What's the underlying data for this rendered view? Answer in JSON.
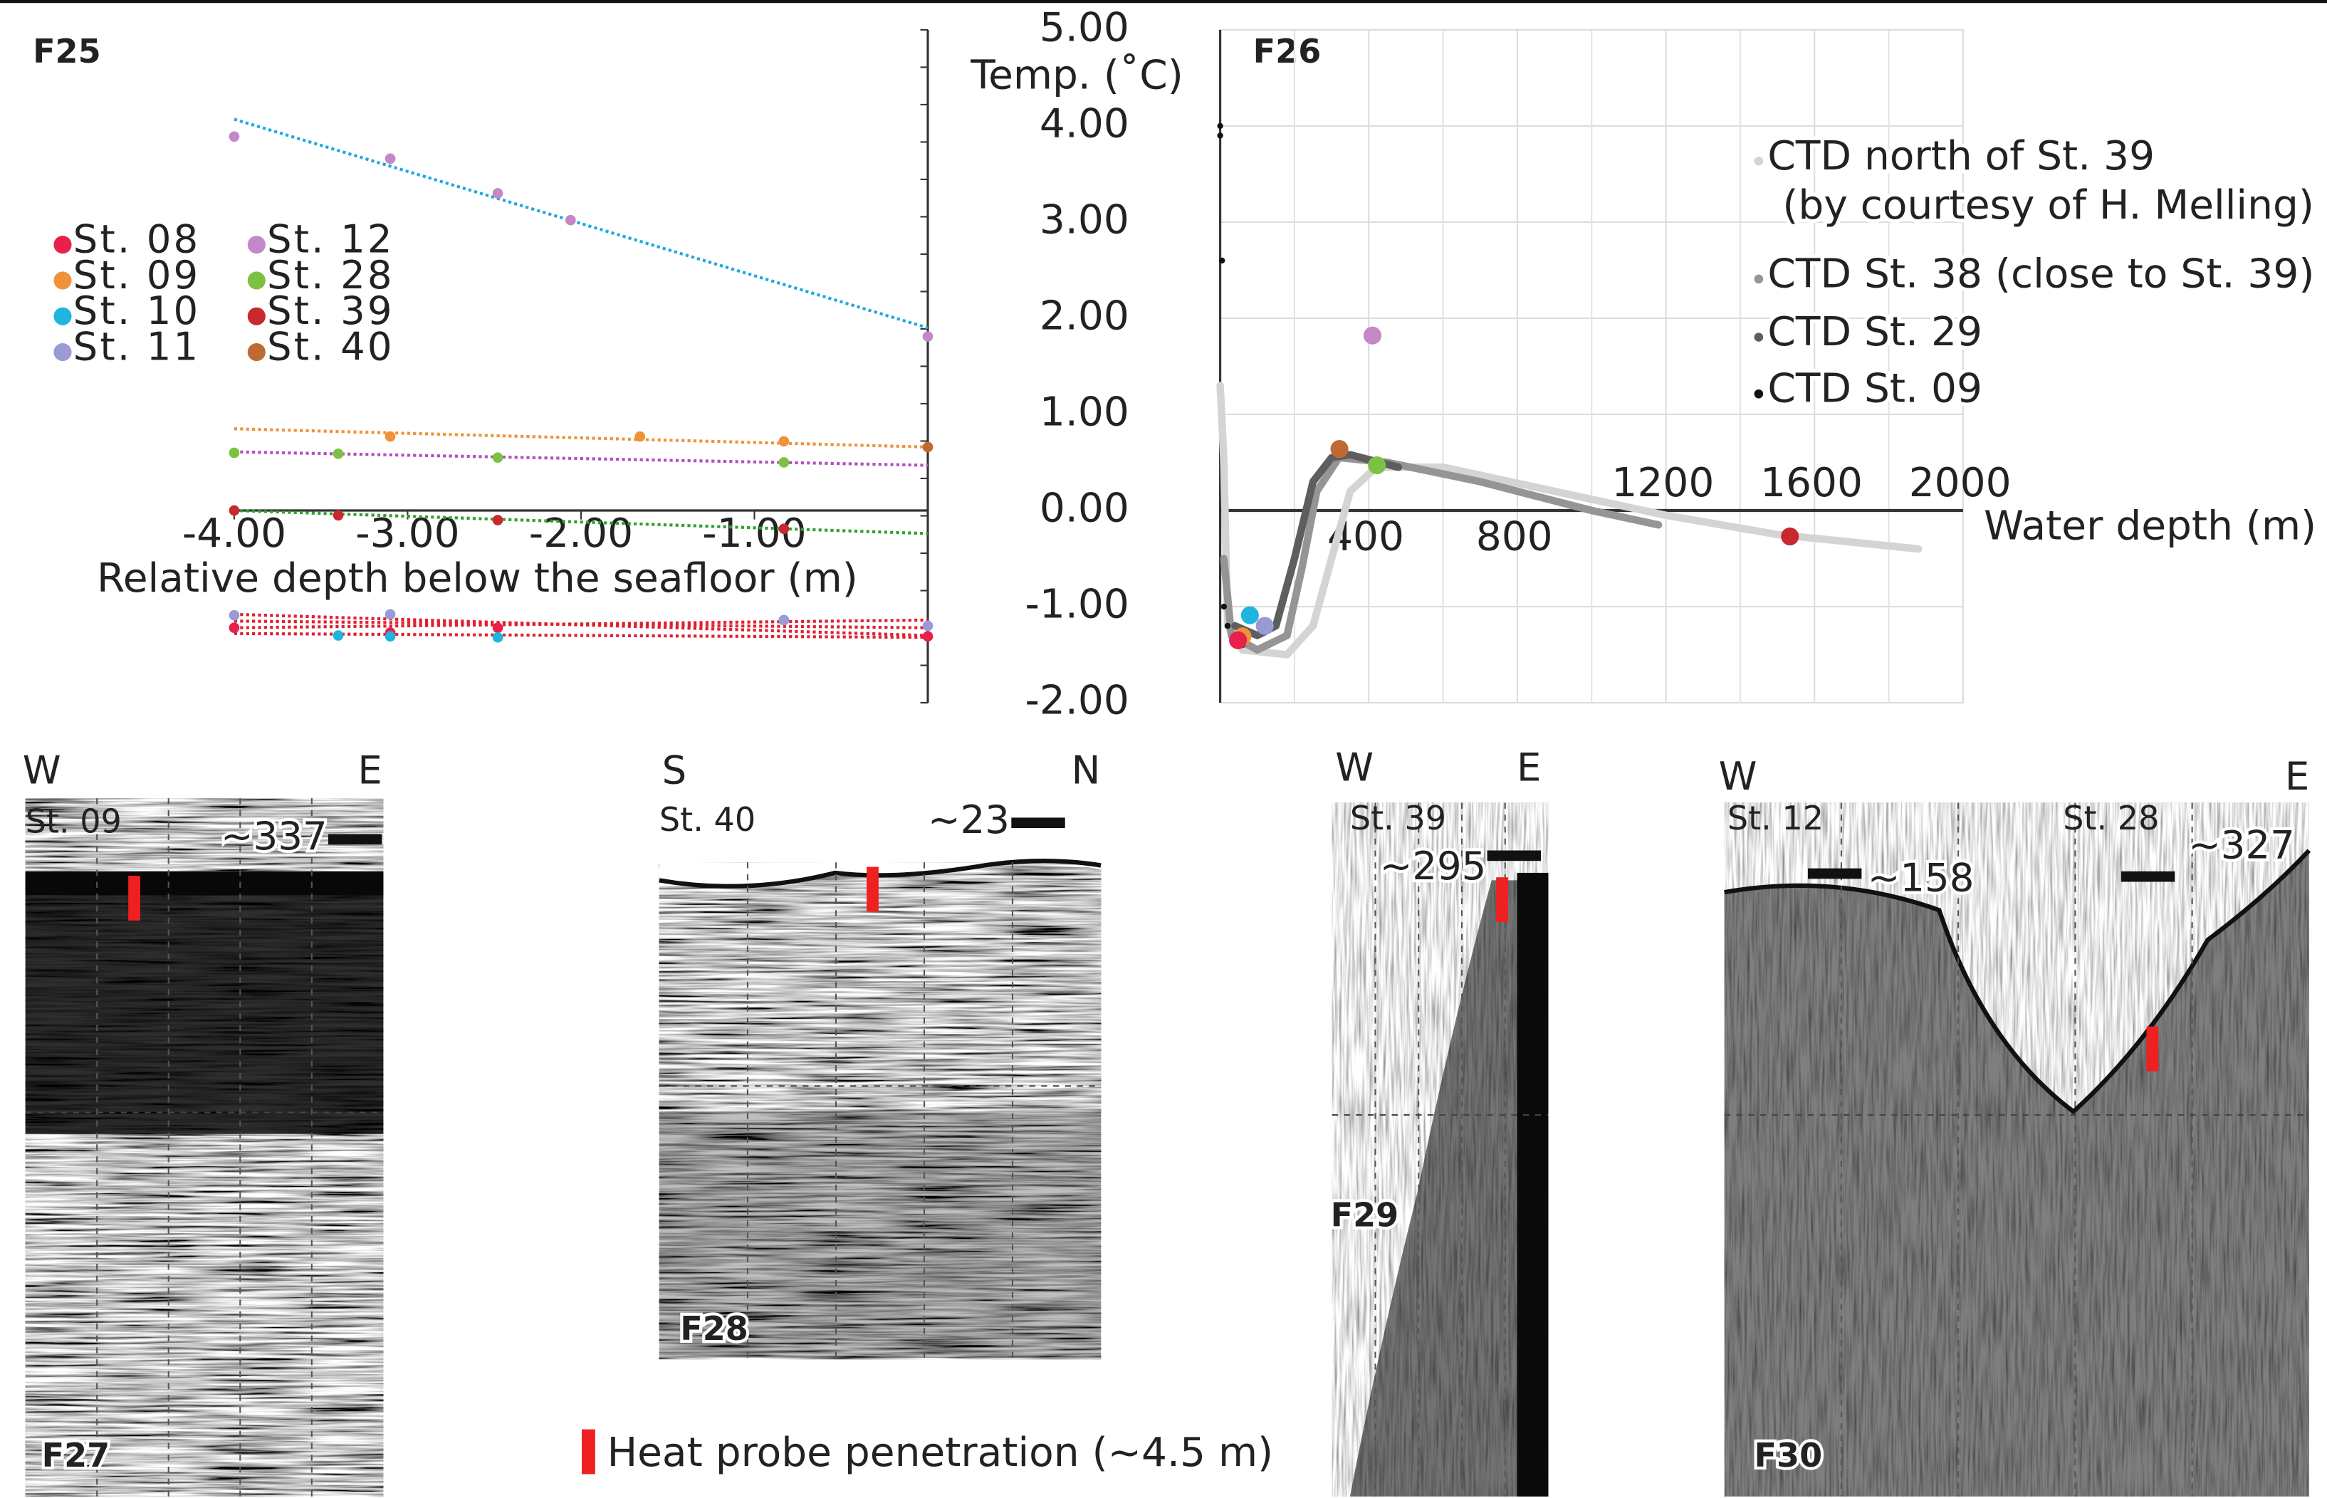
{
  "chart_data": [
    {
      "type": "scatter",
      "title": "F25",
      "x_label": "Relative depth below the seafloor (m)",
      "xlim": [
        -4,
        0
      ],
      "ylim": [
        -2,
        5
      ],
      "xticks": [
        {
          "value": -4,
          "label": "-4.00"
        },
        {
          "value": -3,
          "label": "-3.00"
        },
        {
          "value": -2,
          "label": "-2.00"
        },
        {
          "value": -1,
          "label": "-1.00"
        }
      ],
      "series": [
        {
          "name": "St. 08",
          "color": "#e8204a",
          "x": [
            -4,
            -3.1,
            -2.48,
            0
          ],
          "values": [
            -1.22,
            -1.27,
            -1.22,
            -1.31
          ]
        },
        {
          "name": "St. 09",
          "color": "#f0923a",
          "x": [
            -3.1,
            -1.66,
            -0.83
          ],
          "values": [
            0.77,
            0.77,
            0.72
          ]
        },
        {
          "name": "St. 10",
          "color": "#20b4e0",
          "x": [
            -3.4,
            -3.1,
            -2.48,
            -0.83
          ],
          "values": [
            -1.3,
            -1.31,
            -1.32,
            -1.14
          ]
        },
        {
          "name": "St. 11",
          "color": "#9a9ad6",
          "x": [
            -4,
            -3.1,
            -0.83,
            0
          ],
          "values": [
            -1.09,
            -1.08,
            -1.14,
            -1.2
          ]
        },
        {
          "name": "St. 12",
          "color": "#c487c8",
          "x": [
            -4,
            -3.1,
            -2.48,
            -2.06,
            0
          ],
          "values": [
            3.89,
            3.66,
            3.3,
            3.02,
            1.81
          ]
        },
        {
          "name": "St. 28",
          "color": "#7cc242",
          "x": [
            -4,
            -3.4,
            -2.48,
            -0.83
          ],
          "values": [
            0.6,
            0.59,
            0.55,
            0.5
          ]
        },
        {
          "name": "St. 39",
          "color": "#c8282e",
          "x": [
            -4,
            -3.4,
            -2.48,
            -0.83
          ],
          "values": [
            0,
            -0.05,
            -0.1,
            -0.19
          ]
        },
        {
          "name": "St. 40",
          "color": "#bf6a32",
          "x": [
            0
          ],
          "values": [
            0.66
          ]
        }
      ],
      "fits": [
        {
          "color": "#20a8e0",
          "x": [
            -4,
            0
          ],
          "values": [
            4.07,
            1.9
          ]
        },
        {
          "color": "#f0923a",
          "x": [
            -4,
            0
          ],
          "values": [
            0.85,
            0.66
          ]
        },
        {
          "color": "#b050c0",
          "x": [
            -4,
            0
          ],
          "values": [
            0.61,
            0.47
          ]
        },
        {
          "color": "#30a030",
          "x": [
            -4,
            0
          ],
          "values": [
            0,
            -0.24
          ]
        },
        {
          "color": "#e02030",
          "x": [
            -4,
            0
          ],
          "values": [
            -1.08,
            -1.3
          ]
        },
        {
          "color": "#e02030",
          "x": [
            -4,
            0
          ],
          "values": [
            -1.15,
            -1.22
          ]
        },
        {
          "color": "#e02030",
          "x": [
            -4,
            0
          ],
          "values": [
            -1.22,
            -1.14
          ]
        },
        {
          "color": "#e02030",
          "x": [
            -4,
            0
          ],
          "values": [
            -1.28,
            -1.32
          ]
        }
      ]
    },
    {
      "type": "line",
      "title": "F26",
      "y_label": "Temp. (˚C)",
      "x_label": "Water depth (m)",
      "xlim": [
        0,
        2000
      ],
      "ylim": [
        -2,
        5
      ],
      "grid": true,
      "xticks": [
        400,
        800,
        1200,
        1600,
        2000
      ],
      "x_minor_ticks": [
        200,
        600,
        1000,
        1400,
        1800
      ],
      "yticks": [
        {
          "value": 5,
          "label": "5.00"
        },
        {
          "value": 4,
          "label": "4.00"
        },
        {
          "value": 3,
          "label": "3.00"
        },
        {
          "value": 2,
          "label": "2.00"
        },
        {
          "value": 1,
          "label": "1.00"
        },
        {
          "value": 0,
          "label": "0.00"
        },
        {
          "value": -1,
          "label": "-1.00"
        },
        {
          "value": -2,
          "label": "-2.00"
        }
      ],
      "series": [
        {
          "name": "CTD north of St. 39",
          "name_note": "(by courtesy of H. Melling)",
          "color": "#d4d4d4",
          "style": "line",
          "x": [
            0,
            10,
            20,
            60,
            180,
            250,
            300,
            350,
            420,
            600,
            900,
            1200,
            1500,
            1880
          ],
          "values": [
            1.3,
            0.5,
            -1.2,
            -1.45,
            -1.5,
            -1.2,
            -0.5,
            0.2,
            0.45,
            0.45,
            0.2,
            -0.05,
            -0.25,
            -0.4
          ]
        },
        {
          "name": "CTD St. 38 (close to St. 39)",
          "color": "#959595",
          "style": "line",
          "x": [
            10,
            30,
            100,
            180,
            220,
            260,
            320,
            450,
            700,
            1000,
            1180
          ],
          "values": [
            -0.5,
            -1.3,
            -1.45,
            -1.3,
            -0.6,
            0.2,
            0.55,
            0.5,
            0.3,
            0,
            -0.15
          ]
        },
        {
          "name": "CTD St. 29",
          "color": "#5e5e5e",
          "style": "line",
          "x": [
            40,
            100,
            150,
            200,
            250,
            300,
            350,
            480
          ],
          "values": [
            -1.2,
            -1.3,
            -1.2,
            -0.5,
            0.3,
            0.55,
            0.58,
            0.45
          ]
        },
        {
          "name": "CTD St. 09",
          "color": "#111111",
          "style": "dots",
          "x": [
            0,
            0,
            5,
            10,
            20,
            40,
            60
          ],
          "values": [
            4.0,
            3.9,
            2.6,
            -1.0,
            -1.2,
            -1.3,
            -1.4
          ]
        }
      ],
      "points": {
        "x": [
          410,
          321,
          422,
          1534,
          80,
          120,
          60,
          48
        ],
        "values": [
          1.82,
          0.64,
          0.47,
          -0.27,
          -1.09,
          -1.2,
          -1.31,
          -1.35
        ],
        "colors": [
          "#c487c8",
          "#bf6a32",
          "#7cc242",
          "#c8282e",
          "#20b4e0",
          "#9a9ad6",
          "#f0923a",
          "#e8204a"
        ]
      }
    }
  ],
  "profiles": [
    {
      "id": "F27",
      "left": "W",
      "right": "E",
      "stations": [
        "St. 09"
      ],
      "station_colors": [
        "#ee2a2a"
      ],
      "scales": [
        "~337"
      ]
    },
    {
      "id": "F28",
      "left": "S",
      "right": "N",
      "stations": [
        "St. 40"
      ],
      "station_colors": [
        "#f0923a"
      ],
      "scales": [
        "~23"
      ]
    },
    {
      "id": "F29",
      "left": "W",
      "right": "E",
      "stations": [
        "St. 39"
      ],
      "station_colors": [
        "#2aa84a"
      ],
      "scales": [
        "~295"
      ]
    },
    {
      "id": "F30",
      "left": "W",
      "right": "E",
      "stations": [
        "St. 12",
        "St. 28"
      ],
      "station_colors": [
        "#20b4e0",
        "#d050b0"
      ],
      "scales": [
        "~158",
        "~327"
      ]
    }
  ],
  "legend_note": "Heat probe penetration (~4.5 m)"
}
